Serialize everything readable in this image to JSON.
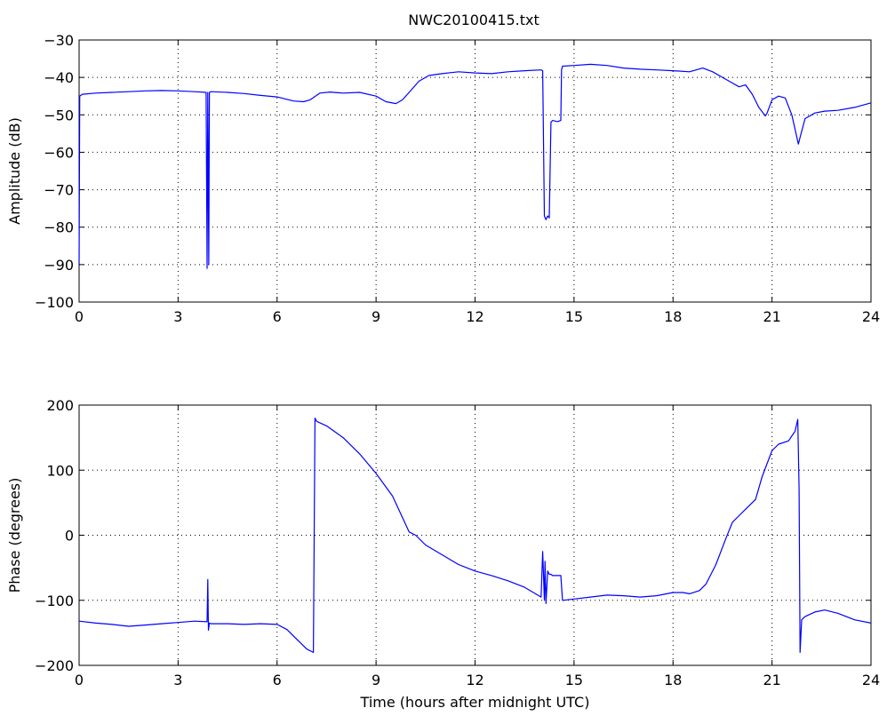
{
  "figure_title": "NWC20100415.txt",
  "colors": {
    "series": "#0000ff",
    "axes": "#000000",
    "background": "#ffffff"
  },
  "chart_data": [
    {
      "type": "line",
      "title": "NWC20100415.txt",
      "xlabel": "",
      "ylabel": "Amplitude (dB)",
      "xlim": [
        0,
        24
      ],
      "ylim": [
        -100,
        -30
      ],
      "xticks": [
        0,
        3,
        6,
        9,
        12,
        15,
        18,
        21,
        24
      ],
      "yticks": [
        -100,
        -90,
        -80,
        -70,
        -60,
        -50,
        -40,
        -30
      ],
      "xtick_labels": [
        "0",
        "3",
        "6",
        "9",
        "12",
        "15",
        "18",
        "21",
        "24"
      ],
      "ytick_labels": [
        "−100",
        "−90",
        "−80",
        "−70",
        "−60",
        "−50",
        "−40",
        "−30"
      ],
      "grid": true,
      "series": [
        {
          "x": [
            0,
            0.02,
            0.05,
            0.1,
            0.5,
            1.0,
            1.5,
            2.0,
            2.5,
            3.0,
            3.5,
            3.85,
            3.88,
            3.9,
            3.93,
            3.95,
            4.0,
            4.5,
            5.0,
            5.5,
            6.0,
            6.5,
            6.8,
            7.0,
            7.3,
            7.6,
            8.0,
            8.5,
            9.0,
            9.3,
            9.6,
            9.8,
            10.0,
            10.3,
            10.6,
            11.0,
            11.5,
            12.0,
            12.5,
            13.0,
            13.5,
            14.0,
            14.05,
            14.1,
            14.15,
            14.2,
            14.25,
            14.3,
            14.35,
            14.5,
            14.6,
            14.62,
            14.65,
            15.0,
            15.5,
            16.0,
            16.5,
            17.0,
            17.5,
            18.0,
            18.5,
            18.9,
            19.2,
            19.5,
            19.8,
            20.0,
            20.2,
            20.4,
            20.6,
            20.8,
            20.85,
            21.0,
            21.2,
            21.4,
            21.6,
            21.8,
            21.85,
            22.0,
            22.3,
            22.6,
            23.0,
            23.5,
            24.0
          ],
          "values": [
            -90,
            -45,
            -44.8,
            -44.5,
            -44.2,
            -44,
            -43.8,
            -43.6,
            -43.5,
            -43.6,
            -43.8,
            -44,
            -91,
            -44,
            -90,
            -44,
            -43.8,
            -44,
            -44.3,
            -44.8,
            -45.2,
            -46.3,
            -46.5,
            -46,
            -44.2,
            -43.9,
            -44.2,
            -44,
            -45,
            -46.5,
            -47,
            -46,
            -44,
            -41,
            -39.5,
            -39,
            -38.5,
            -38.8,
            -39,
            -38.5,
            -38.2,
            -38,
            -38.2,
            -77,
            -78,
            -77,
            -77.5,
            -52,
            -51.5,
            -51.8,
            -51.5,
            -38,
            -37,
            -36.8,
            -36.5,
            -36.8,
            -37.5,
            -37.8,
            -38,
            -38.2,
            -38.5,
            -37.5,
            -38.5,
            -40,
            -41.5,
            -42.5,
            -42,
            -44.5,
            -48,
            -50.3,
            -49.5,
            -46,
            -45,
            -45.5,
            -50,
            -57.8,
            -56,
            -51,
            -49.5,
            -49,
            -48.8,
            -48,
            -46.8
          ]
        }
      ]
    },
    {
      "type": "line",
      "title": "",
      "xlabel": "Time (hours after midnight UTC)",
      "ylabel": "Phase (degrees)",
      "xlim": [
        0,
        24
      ],
      "ylim": [
        -200,
        200
      ],
      "xticks": [
        0,
        3,
        6,
        9,
        12,
        15,
        18,
        21,
        24
      ],
      "yticks": [
        -200,
        -100,
        0,
        100,
        200
      ],
      "xtick_labels": [
        "0",
        "3",
        "6",
        "9",
        "12",
        "15",
        "18",
        "21",
        "24"
      ],
      "ytick_labels": [
        "−200",
        "−100",
        "0",
        "100",
        "200"
      ],
      "grid": true,
      "series": [
        {
          "x": [
            0,
            0.5,
            1.0,
            1.5,
            2.0,
            2.5,
            3.0,
            3.5,
            3.88,
            3.9,
            3.92,
            3.95,
            4.0,
            4.5,
            5.0,
            5.5,
            6.0,
            6.3,
            6.6,
            6.9,
            7.1,
            7.15,
            7.2,
            7.5,
            8.0,
            8.5,
            9.0,
            9.5,
            10.0,
            10.2,
            10.5,
            11.0,
            11.5,
            12.0,
            12.5,
            13.0,
            13.5,
            14.0,
            14.05,
            14.1,
            14.12,
            14.15,
            14.2,
            14.25,
            14.3,
            14.35,
            14.6,
            14.65,
            15.0,
            15.5,
            16.0,
            16.5,
            17.0,
            17.5,
            18.0,
            18.3,
            18.5,
            18.8,
            19.0,
            19.3,
            19.6,
            19.8,
            20.0,
            20.2,
            20.5,
            20.7,
            21.0,
            21.2,
            21.5,
            21.7,
            21.78,
            21.82,
            21.85,
            21.9,
            22.0,
            22.3,
            22.6,
            23.0,
            23.5,
            24.0
          ],
          "values": [
            -132,
            -135,
            -137,
            -140,
            -138,
            -136,
            -134,
            -132,
            -133,
            -68,
            -146,
            -135,
            -136,
            -136,
            -137,
            -136,
            -137,
            -145,
            -160,
            -175,
            -180,
            180,
            175,
            168,
            150,
            125,
            95,
            60,
            5,
            0,
            -15,
            -30,
            -45,
            -55,
            -62,
            -70,
            -80,
            -95,
            -25,
            -100,
            -40,
            -105,
            -55,
            -60,
            -60,
            -62,
            -62,
            -100,
            -98,
            -95,
            -92,
            -93,
            -95,
            -93,
            -88,
            -88,
            -90,
            -85,
            -75,
            -45,
            -5,
            20,
            30,
            40,
            55,
            90,
            130,
            140,
            145,
            160,
            178,
            70,
            -180,
            -130,
            -125,
            -118,
            -115,
            -120,
            -130,
            -135
          ]
        }
      ]
    }
  ]
}
